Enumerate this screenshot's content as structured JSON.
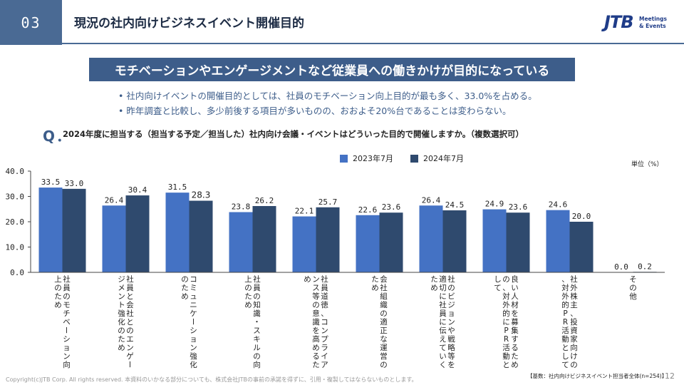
{
  "header": {
    "section_number": "03",
    "title": "現況の社内向けビジネスイベント開催目的",
    "logo_mark": "JTB",
    "logo_text_1": "Meetings",
    "logo_text_2": "& Events"
  },
  "banner": "モチベーションやエンゲージメントなど従業員への働きかけが目的になっている",
  "bullets": [
    "• 社内向けイベントの開催目的としては、社員のモチベーション向上目的が最も多く、33.0%を占める。",
    "• 昨年調査と比較し、多少前後する項目が多いものの、おおよそ20%台であることは変わらない。"
  ],
  "question": {
    "mark": "Q．",
    "text": "2024年度に担当する（担当する予定／担当した）社内向け会議・イベントはどういった目的で開催しますか。（複数選択可）"
  },
  "unit": "単位（%）",
  "chart_data": {
    "type": "bar",
    "categories": [
      "社員のモチベーション向上のため",
      "社員と会社とのエンゲージメント強化のため",
      "コミュニケーション強化のため",
      "社員の知識・スキルの向上のため",
      "社員道徳、コンプライアンス等の意識を高めるため",
      "会社組織の適正な運営のため",
      "社のビジョンや戦略等を適切に社員に伝えていくため",
      "良い人材を募集するための、対外的にPR活動として",
      "社外株主、投資家向けの、対外的PR活動として",
      "その他"
    ],
    "series": [
      {
        "name": "2023年7月",
        "values": [
          33.5,
          26.4,
          31.5,
          23.8,
          22.1,
          22.6,
          26.4,
          24.9,
          24.6,
          0.0
        ],
        "color": "#4472c4"
      },
      {
        "name": "2024年7月",
        "values": [
          33.0,
          30.4,
          28.3,
          26.2,
          25.7,
          23.6,
          24.5,
          23.6,
          20.0,
          0.2
        ],
        "color": "#2f4a6e"
      }
    ],
    "value_labels": [
      [
        "33.5",
        "26.4",
        "31.5",
        "23.8",
        "22.1",
        "22.6",
        "26.4",
        "24.9",
        "24.6",
        "0.0"
      ],
      [
        "33.0",
        "30.4",
        "28.3",
        "26.2",
        "25.7",
        "23.6",
        "24.5",
        "23.6",
        "20.0",
        "0.2"
      ]
    ],
    "ylim": [
      0,
      40
    ],
    "yticks": [
      "0.0",
      "10.0",
      "20.0",
      "30.0",
      "40.0"
    ],
    "grid": false,
    "legend": "top-center"
  },
  "footer": {
    "copyright": "Copyright(c)JTB Corp. All rights reserved. 本資料のいかなる部分についても、株式会社JTBの事前の承諾を得ずに、引用・複製してはならないものとします。",
    "base": "【基数：社内向けビジネスイベント担当者全体(n=254)】",
    "page": "12"
  }
}
